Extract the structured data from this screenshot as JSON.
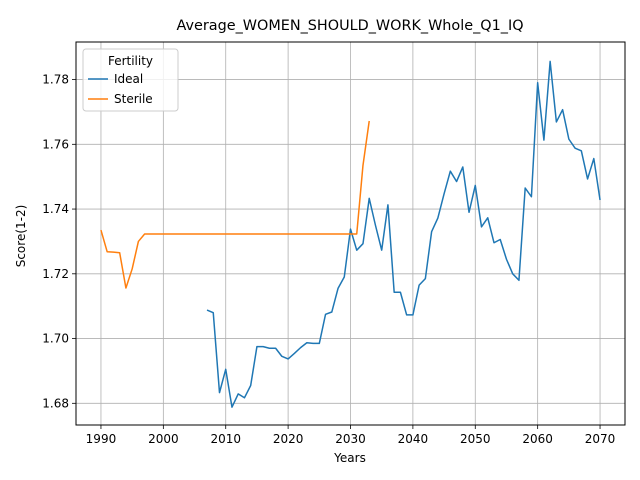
{
  "chart_data": {
    "type": "line",
    "title": "Average_WOMEN_SHOULD_WORK_Whole_Q1_IQ",
    "xlabel": "Years",
    "ylabel": "Score(1-2)",
    "xlim": [
      1986.0,
      2074.0
    ],
    "ylim": [
      1.6733,
      1.7916
    ],
    "xticks": [
      1990,
      2000,
      2010,
      2020,
      2030,
      2040,
      2050,
      2060,
      2070
    ],
    "yticks": [
      1.68,
      1.7,
      1.72,
      1.74,
      1.76,
      1.78
    ],
    "ytick_labels": [
      "1.68",
      "1.70",
      "1.72",
      "1.74",
      "1.76",
      "1.78"
    ],
    "grid": true,
    "legend": {
      "title": "Fertility",
      "position": "top-left"
    },
    "series": [
      {
        "name": "Ideal",
        "color": "#1f77b4",
        "x": [
          2007,
          2008,
          2009,
          2010,
          2011,
          2012,
          2013,
          2014,
          2015,
          2016,
          2017,
          2018,
          2019,
          2020,
          2021,
          2022,
          2023,
          2024,
          2025,
          2026,
          2027,
          2028,
          2029,
          2030,
          2031,
          2032,
          2033,
          2034,
          2035,
          2036,
          2037,
          2038,
          2039,
          2040,
          2041,
          2042,
          2043,
          2044,
          2045,
          2046,
          2047,
          2048,
          2049,
          2050,
          2051,
          2052,
          2053,
          2054,
          2055,
          2056,
          2057,
          2058,
          2059,
          2060,
          2061,
          2062,
          2063,
          2064,
          2065,
          2066,
          2067,
          2068,
          2069,
          2070
        ],
        "y": [
          1.7088,
          1.708,
          1.6833,
          1.6905,
          1.6788,
          1.6829,
          1.6817,
          1.6855,
          1.6975,
          1.6975,
          1.697,
          1.697,
          1.6945,
          1.6937,
          1.6954,
          1.6972,
          1.6987,
          1.6985,
          1.6985,
          1.7075,
          1.7082,
          1.7155,
          1.719,
          1.7338,
          1.7273,
          1.7293,
          1.7433,
          1.735,
          1.7273,
          1.7413,
          1.7143,
          1.7143,
          1.7073,
          1.7073,
          1.7165,
          1.7185,
          1.733,
          1.7372,
          1.7447,
          1.7517,
          1.7485,
          1.753,
          1.739,
          1.7473,
          1.7345,
          1.7373,
          1.7296,
          1.7306,
          1.7245,
          1.72,
          1.718,
          1.7465,
          1.7438,
          1.779,
          1.7613,
          1.7856,
          1.7669,
          1.7707,
          1.7616,
          1.7588,
          1.758,
          1.7493,
          1.7556,
          1.7428
        ]
      },
      {
        "name": "Sterile",
        "color": "#ff7f0e",
        "x": [
          1990,
          1991,
          1992,
          1993,
          1994,
          1995,
          1996,
          1997,
          1998,
          2000,
          2010,
          2020,
          2028,
          2029,
          2030,
          2031,
          2032,
          2033
        ],
        "y": [
          1.7335,
          1.7268,
          1.7267,
          1.7265,
          1.7156,
          1.7215,
          1.73,
          1.7323,
          1.7323,
          1.7323,
          1.7323,
          1.7323,
          1.7323,
          1.7323,
          1.7323,
          1.7323,
          1.7535,
          1.7672
        ]
      }
    ]
  }
}
